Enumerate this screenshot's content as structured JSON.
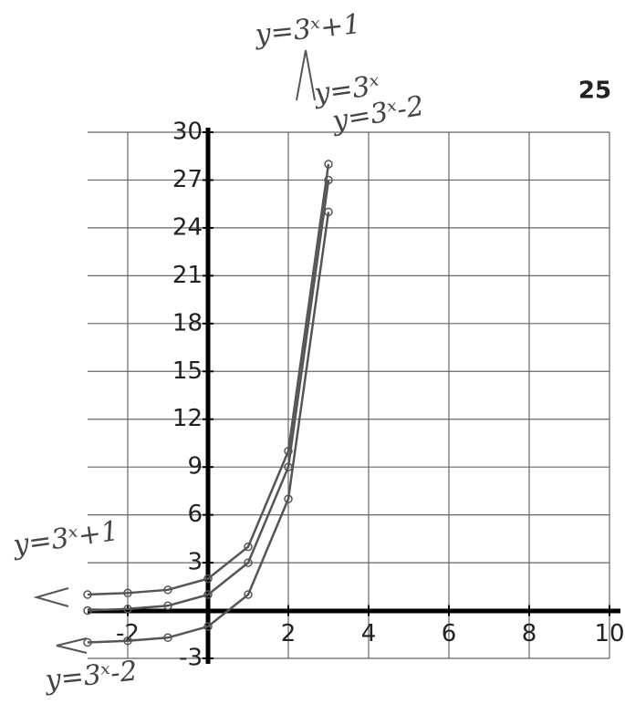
{
  "chart_data": {
    "type": "line",
    "page_number": "25",
    "x": [
      -3,
      -2,
      -1,
      0,
      1,
      2,
      3
    ],
    "series": [
      {
        "name": "y=3ˣ+1",
        "color": "#555555",
        "values": [
          1.0,
          1.1,
          1.3,
          2,
          4,
          10,
          28
        ]
      },
      {
        "name": "y=3ˣ",
        "color": "#555555",
        "values": [
          0.0,
          0.1,
          0.3,
          1,
          3,
          9,
          27
        ]
      },
      {
        "name": "y=3ˣ-2",
        "color": "#555555",
        "values": [
          -2,
          -1.9,
          -1.7,
          -1,
          1,
          7,
          25
        ]
      }
    ],
    "annotations": [
      "y=3ˣ+1",
      "y=3ˣ-2"
    ],
    "xlim": [
      -3,
      10
    ],
    "xticks": [
      -2,
      2,
      4,
      6,
      8,
      10
    ],
    "ylim": [
      -3,
      30
    ],
    "yticks": [
      -3,
      3,
      6,
      9,
      12,
      15,
      18,
      21,
      24,
      27,
      30
    ],
    "grid": true
  }
}
